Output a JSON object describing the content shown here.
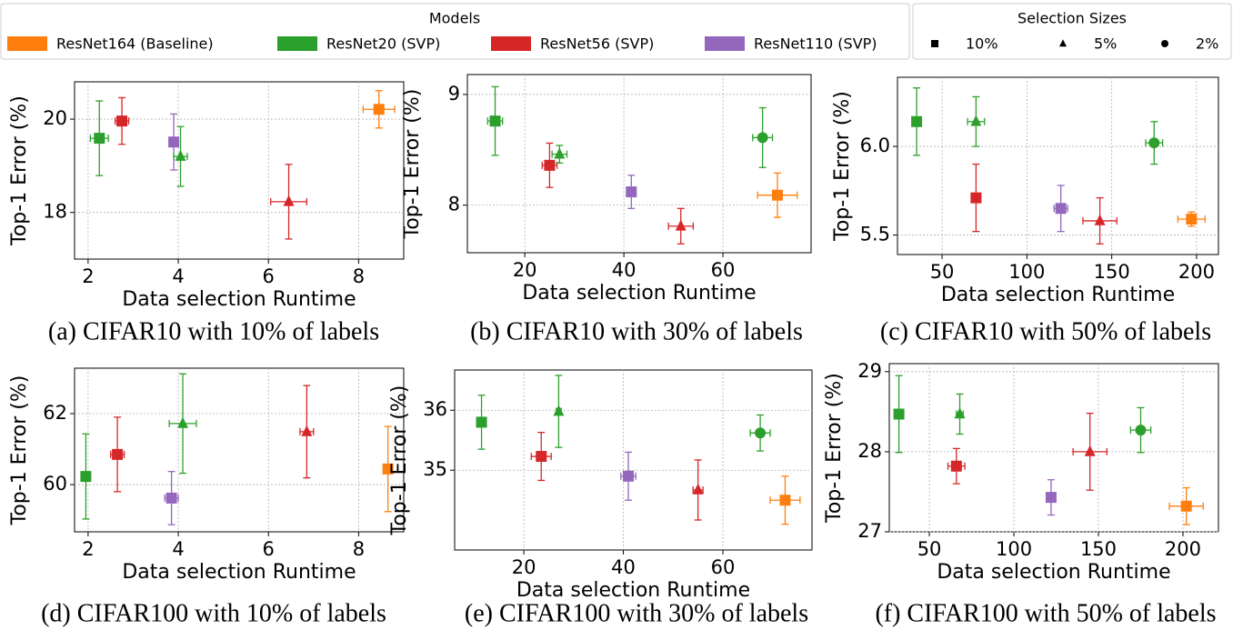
{
  "legend": {
    "models": {
      "title": "Models",
      "entries": [
        {
          "name": "ResNet164 (Baseline)",
          "color": "#ff7f0e"
        },
        {
          "name": "ResNet20 (SVP)",
          "color": "#2ca02c"
        },
        {
          "name": "ResNet56 (SVP)",
          "color": "#d62728"
        },
        {
          "name": "ResNet110 (SVP)",
          "color": "#9467bd"
        }
      ]
    },
    "sizes": {
      "title": "Selection Sizes",
      "entries": [
        {
          "label": "10%",
          "marker": "square"
        },
        {
          "label": "5%",
          "marker": "triangle"
        },
        {
          "label": "2%",
          "marker": "circle"
        }
      ]
    }
  },
  "chart_data": [
    {
      "type": "scatter",
      "caption": "(a) CIFAR10 with 10% of labels",
      "xlabel": "Data selection Runtime",
      "ylabel": "Top-1 Error (%)",
      "xlim": [
        1.7,
        9.0
      ],
      "ylim": [
        17.0,
        20.8
      ],
      "xticks": [
        2,
        4,
        6,
        8
      ],
      "yticks": [
        18,
        20
      ],
      "grid": true,
      "points": [
        {
          "model": 1,
          "marker": "square",
          "x": 2.25,
          "y": 19.59,
          "xerr": 0.2,
          "yerr": 0.8
        },
        {
          "model": 2,
          "marker": "square",
          "x": 2.75,
          "y": 19.96,
          "xerr": 0.15,
          "yerr": 0.5
        },
        {
          "model": 3,
          "marker": "square",
          "x": 3.9,
          "y": 19.51,
          "xerr": 0.1,
          "yerr": 0.6
        },
        {
          "model": 1,
          "marker": "triangle",
          "x": 4.05,
          "y": 19.2,
          "xerr": 0.15,
          "yerr": 0.64
        },
        {
          "model": 2,
          "marker": "triangle",
          "x": 6.45,
          "y": 18.23,
          "xerr": 0.4,
          "yerr": 0.8
        },
        {
          "model": 0,
          "marker": "square",
          "x": 8.45,
          "y": 20.21,
          "xerr": 0.35,
          "yerr": 0.4
        }
      ]
    },
    {
      "type": "scatter",
      "caption": "(b) CIFAR10 with 30% of labels",
      "xlabel": "Data selection Runtime",
      "ylabel": "Top-1 Error (%)",
      "xlim": [
        8.4,
        77.8
      ],
      "ylim": [
        7.57,
        9.18
      ],
      "xticks": [
        20,
        40,
        60
      ],
      "yticks": [
        8,
        9
      ],
      "grid": true,
      "points": [
        {
          "model": 1,
          "marker": "square",
          "x": 14,
          "y": 8.76,
          "xerr": 1.5,
          "yerr": 0.31
        },
        {
          "model": 2,
          "marker": "square",
          "x": 25,
          "y": 8.36,
          "xerr": 1.5,
          "yerr": 0.2
        },
        {
          "model": 1,
          "marker": "triangle",
          "x": 27,
          "y": 8.46,
          "xerr": 1.5,
          "yerr": 0.08
        },
        {
          "model": 3,
          "marker": "square",
          "x": 41.5,
          "y": 8.12,
          "xerr": 0.5,
          "yerr": 0.15
        },
        {
          "model": 2,
          "marker": "triangle",
          "x": 51.5,
          "y": 7.81,
          "xerr": 2.5,
          "yerr": 0.16
        },
        {
          "model": 1,
          "marker": "circle",
          "x": 68,
          "y": 8.61,
          "xerr": 2,
          "yerr": 0.27
        },
        {
          "model": 0,
          "marker": "square",
          "x": 71,
          "y": 8.09,
          "xerr": 4,
          "yerr": 0.2
        }
      ]
    },
    {
      "type": "scatter",
      "caption": "(c) CIFAR10 with 50% of labels",
      "xlabel": "Data selection Runtime",
      "ylabel": "Top-1 Error (%)",
      "xlim": [
        23.7,
        212.9
      ],
      "ylim": [
        5.39,
        6.39
      ],
      "xticks": [
        50,
        100,
        150,
        200
      ],
      "yticks": [
        5.5,
        {
          "value": 6,
          "label": "6.0"
        }
      ],
      "grid": true,
      "points": [
        {
          "model": 1,
          "marker": "square",
          "x": 35,
          "y": 6.14,
          "xerr": 2,
          "yerr": 0.19
        },
        {
          "model": 1,
          "marker": "triangle",
          "x": 70,
          "y": 6.14,
          "xerr": 5,
          "yerr": 0.14
        },
        {
          "model": 2,
          "marker": "square",
          "x": 70,
          "y": 5.71,
          "xerr": 2,
          "yerr": 0.19
        },
        {
          "model": 3,
          "marker": "square",
          "x": 120,
          "y": 5.65,
          "xerr": 4,
          "yerr": 0.13
        },
        {
          "model": 2,
          "marker": "triangle",
          "x": 143,
          "y": 5.58,
          "xerr": 10,
          "yerr": 0.13
        },
        {
          "model": 1,
          "marker": "circle",
          "x": 175,
          "y": 6.02,
          "xerr": 5,
          "yerr": 0.12
        },
        {
          "model": 0,
          "marker": "square",
          "x": 197,
          "y": 5.59,
          "xerr": 8,
          "yerr": 0.04
        }
      ]
    },
    {
      "type": "scatter",
      "caption": "(d) CIFAR100 with 10% of labels",
      "xlabel": "Data selection Runtime",
      "ylabel": "Top-1 Error (%)",
      "xlim": [
        1.7,
        9.0
      ],
      "ylim": [
        58.67,
        63.28
      ],
      "xticks": [
        2,
        4,
        6,
        8
      ],
      "yticks": [
        60,
        62
      ],
      "grid": true,
      "points": [
        {
          "model": 1,
          "marker": "square",
          "x": 1.95,
          "y": 60.23,
          "xerr": 0.05,
          "yerr": 1.2
        },
        {
          "model": 2,
          "marker": "square",
          "x": 2.65,
          "y": 60.85,
          "xerr": 0.15,
          "yerr": 1.05
        },
        {
          "model": 3,
          "marker": "square",
          "x": 3.85,
          "y": 59.62,
          "xerr": 0.15,
          "yerr": 0.75
        },
        {
          "model": 1,
          "marker": "triangle",
          "x": 4.1,
          "y": 61.72,
          "xerr": 0.3,
          "yerr": 1.4
        },
        {
          "model": 2,
          "marker": "triangle",
          "x": 6.85,
          "y": 61.49,
          "xerr": 0.15,
          "yerr": 1.3
        },
        {
          "model": 0,
          "marker": "square",
          "x": 8.65,
          "y": 60.44,
          "xerr": 0.1,
          "yerr": 1.2
        }
      ]
    },
    {
      "type": "scatter",
      "caption": "(e) CIFAR100 with 30% of labels",
      "xlabel": "Data selection Runtime",
      "ylabel": "Top-1 Error (%)",
      "xlim": [
        6.1,
        77.9
      ],
      "ylim": [
        33.67,
        36.67
      ],
      "xticks": [
        20,
        40,
        60
      ],
      "yticks": [
        35,
        36
      ],
      "grid": true,
      "points": [
        {
          "model": 1,
          "marker": "square",
          "x": 11.5,
          "y": 35.8,
          "xerr": 0.5,
          "yerr": 0.45
        },
        {
          "model": 1,
          "marker": "triangle",
          "x": 27,
          "y": 35.98,
          "xerr": 0.5,
          "yerr": 0.6
        },
        {
          "model": 2,
          "marker": "square",
          "x": 23.5,
          "y": 35.23,
          "xerr": 2,
          "yerr": 0.4
        },
        {
          "model": 3,
          "marker": "square",
          "x": 41,
          "y": 34.9,
          "xerr": 1.5,
          "yerr": 0.4
        },
        {
          "model": 2,
          "marker": "triangle",
          "x": 55,
          "y": 34.67,
          "xerr": 1,
          "yerr": 0.5
        },
        {
          "model": 1,
          "marker": "circle",
          "x": 67.5,
          "y": 35.62,
          "xerr": 2,
          "yerr": 0.3
        },
        {
          "model": 0,
          "marker": "square",
          "x": 72.5,
          "y": 34.5,
          "xerr": 3,
          "yerr": 0.4
        }
      ]
    },
    {
      "type": "scatter",
      "caption": "(f) CIFAR100 with 50% of labels",
      "xlabel": "Data selection Runtime",
      "ylabel": "Top-1 Error (%)",
      "xlim": [
        26.3,
        221
      ],
      "ylim": [
        27,
        29.1
      ],
      "xticks": [
        50,
        100,
        150,
        200
      ],
      "yticks": [
        27,
        28,
        29
      ],
      "grid": true,
      "points": [
        {
          "model": 1,
          "marker": "square",
          "x": 32,
          "y": 28.47,
          "xerr": 1,
          "yerr": 0.48
        },
        {
          "model": 1,
          "marker": "triangle",
          "x": 68,
          "y": 28.47,
          "xerr": 2,
          "yerr": 0.25
        },
        {
          "model": 2,
          "marker": "square",
          "x": 66,
          "y": 27.82,
          "xerr": 5,
          "yerr": 0.22
        },
        {
          "model": 3,
          "marker": "square",
          "x": 122,
          "y": 27.43,
          "xerr": 2,
          "yerr": 0.22
        },
        {
          "model": 2,
          "marker": "triangle",
          "x": 145,
          "y": 28.0,
          "xerr": 10,
          "yerr": 0.48
        },
        {
          "model": 1,
          "marker": "circle",
          "x": 175,
          "y": 28.27,
          "xerr": 6,
          "yerr": 0.28
        },
        {
          "model": 0,
          "marker": "square",
          "x": 202,
          "y": 27.32,
          "xerr": 10,
          "yerr": 0.23
        }
      ]
    }
  ]
}
